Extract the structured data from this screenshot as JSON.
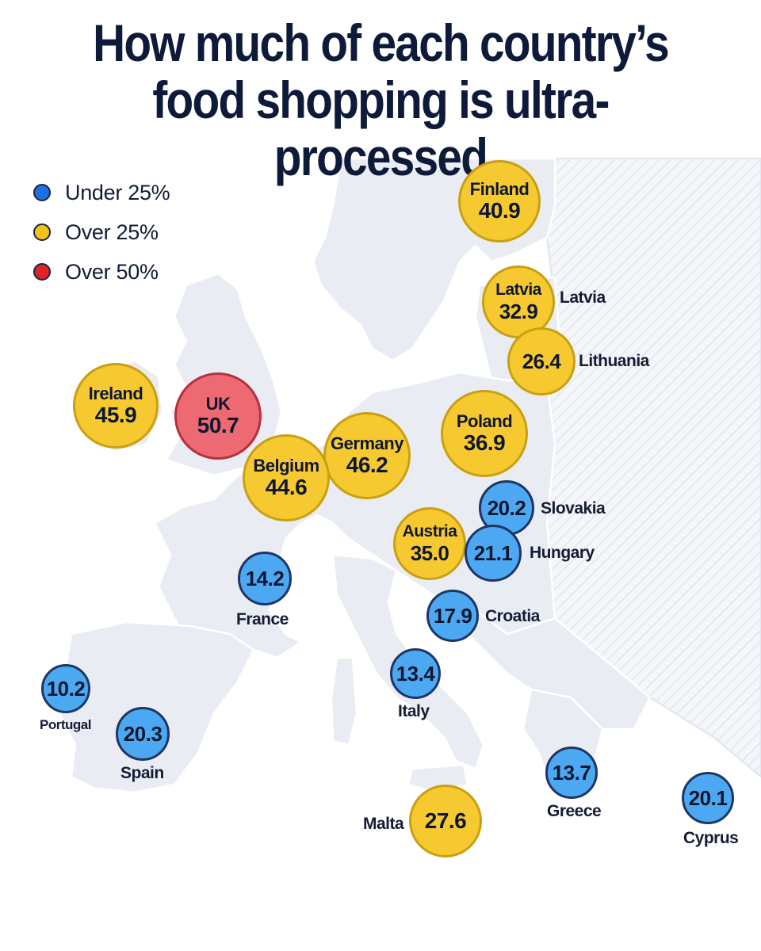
{
  "title": {
    "line1": "How much of each country’s",
    "line2": "food shopping is ultra-processed"
  },
  "colors": {
    "under25": "#4da8f2",
    "over25": "#f6c930",
    "over50": "#ee6a72",
    "land": "#e9edf3",
    "border": "#ffffff",
    "bubble_edge": "#1e3566"
  },
  "legend": [
    {
      "label": "Under 25%",
      "color": "#1f6fe0"
    },
    {
      "label": "Over 25%",
      "color": "#f2c21b"
    },
    {
      "label": "Over 50%",
      "color": "#e02424"
    }
  ],
  "countries": [
    {
      "name": "Finland",
      "value": "40.9",
      "category": "over25"
    },
    {
      "name": "Latvia",
      "value": "32.9",
      "category": "over25"
    },
    {
      "name": "Lithuania",
      "value": "26.4",
      "category": "over25"
    },
    {
      "name": "Ireland",
      "value": "45.9",
      "category": "over25"
    },
    {
      "name": "UK",
      "value": "50.7",
      "category": "over50"
    },
    {
      "name": "Poland",
      "value": "36.9",
      "category": "over25"
    },
    {
      "name": "Germany",
      "value": "46.2",
      "category": "over25"
    },
    {
      "name": "Belgium",
      "value": "44.6",
      "category": "over25"
    },
    {
      "name": "Slovakia",
      "value": "20.2",
      "category": "under25"
    },
    {
      "name": "Austria",
      "value": "35.0",
      "category": "over25"
    },
    {
      "name": "Hungary",
      "value": "21.1",
      "category": "under25"
    },
    {
      "name": "France",
      "value": "14.2",
      "category": "under25"
    },
    {
      "name": "Croatia",
      "value": "17.9",
      "category": "under25"
    },
    {
      "name": "Italy",
      "value": "13.4",
      "category": "under25"
    },
    {
      "name": "Portugal",
      "value": "10.2",
      "category": "under25"
    },
    {
      "name": "Spain",
      "value": "20.3",
      "category": "under25"
    },
    {
      "name": "Greece",
      "value": "13.7",
      "category": "under25"
    },
    {
      "name": "Cyprus",
      "value": "20.1",
      "category": "under25"
    },
    {
      "name": "Malta",
      "value": "27.6",
      "category": "over25"
    }
  ]
}
